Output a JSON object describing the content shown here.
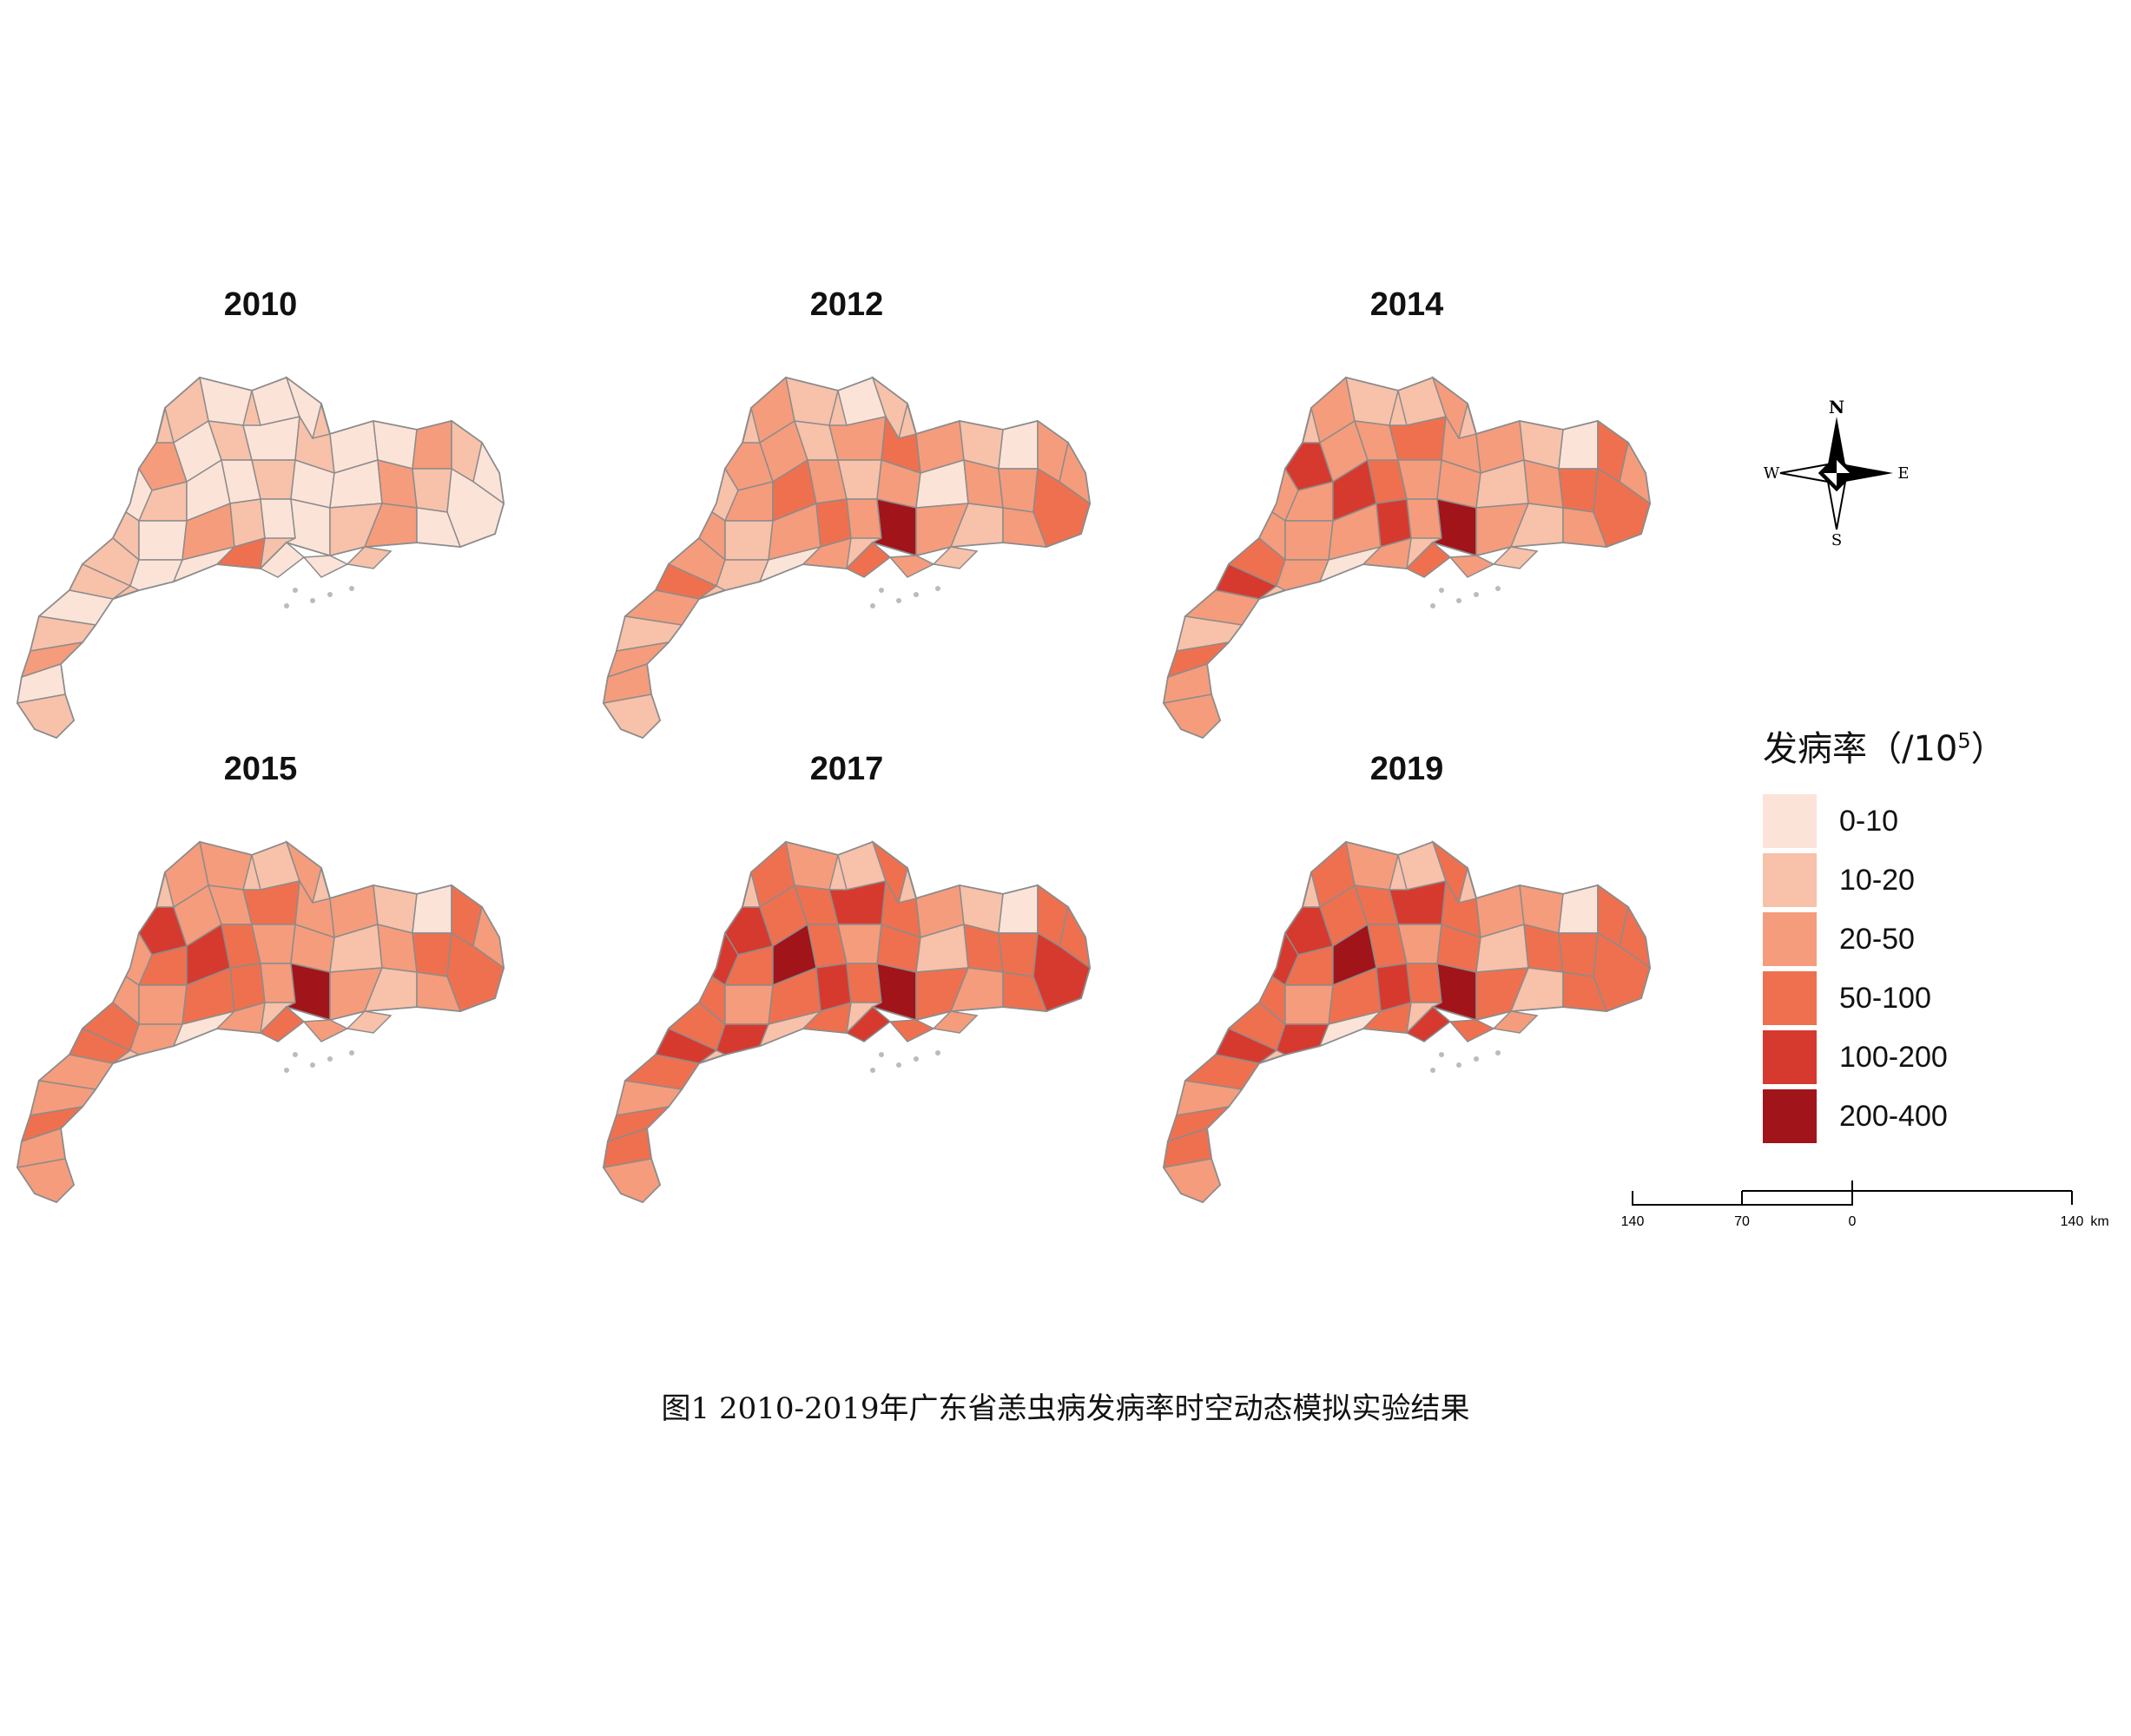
{
  "panels": [
    {
      "year": "2010",
      "classes": [
        0,
        1,
        0,
        0,
        2,
        0,
        1,
        0,
        1,
        0,
        0,
        2,
        1,
        0,
        0,
        1,
        0,
        0,
        1,
        0,
        0,
        2,
        1,
        0,
        1,
        0,
        2,
        1,
        0,
        0,
        1,
        2,
        0,
        1,
        0,
        0,
        3,
        1,
        0,
        1,
        2,
        0,
        1,
        0,
        0,
        1
      ]
    },
    {
      "year": "2012",
      "classes": [
        1,
        2,
        0,
        1,
        2,
        2,
        1,
        2,
        3,
        2,
        1,
        0,
        2,
        2,
        1,
        2,
        3,
        2,
        1,
        2,
        0,
        2,
        2,
        3,
        2,
        1,
        2,
        3,
        2,
        5,
        2,
        1,
        2,
        2,
        1,
        0,
        2,
        3,
        2,
        1,
        2,
        2,
        1,
        3,
        2,
        1
      ]
    },
    {
      "year": "2014",
      "classes": [
        1,
        2,
        1,
        2,
        4,
        2,
        2,
        3,
        2,
        2,
        1,
        0,
        3,
        2,
        2,
        2,
        4,
        3,
        2,
        2,
        1,
        2,
        3,
        3,
        2,
        2,
        2,
        4,
        2,
        5,
        2,
        1,
        2,
        3,
        2,
        0,
        2,
        4,
        2,
        1,
        3,
        2,
        2,
        3,
        2,
        1
      ]
    },
    {
      "year": "2015",
      "classes": [
        2,
        2,
        1,
        2,
        4,
        2,
        2,
        3,
        2,
        2,
        1,
        0,
        3,
        2,
        2,
        3,
        4,
        3,
        2,
        2,
        1,
        2,
        3,
        3,
        2,
        2,
        3,
        3,
        2,
        5,
        2,
        1,
        2,
        3,
        2,
        0,
        2,
        3,
        2,
        2,
        3,
        2,
        2,
        3,
        2,
        1
      ]
    },
    {
      "year": "2017",
      "classes": [
        2,
        3,
        1,
        3,
        4,
        3,
        3,
        4,
        3,
        2,
        1,
        0,
        3,
        3,
        4,
        3,
        5,
        3,
        2,
        3,
        1,
        3,
        3,
        4,
        3,
        2,
        3,
        4,
        3,
        5,
        3,
        2,
        3,
        3,
        4,
        1,
        3,
        4,
        3,
        2,
        3,
        3,
        2,
        4,
        3,
        2
      ]
    },
    {
      "year": "2019",
      "classes": [
        2,
        3,
        1,
        3,
        4,
        3,
        3,
        4,
        3,
        2,
        2,
        0,
        3,
        3,
        4,
        3,
        5,
        3,
        2,
        3,
        1,
        3,
        3,
        3,
        3,
        2,
        3,
        4,
        3,
        5,
        3,
        1,
        3,
        3,
        4,
        0,
        3,
        4,
        3,
        2,
        3,
        3,
        2,
        4,
        3,
        2
      ]
    }
  ],
  "legend": {
    "title": "发病率（/10",
    "title_sup": "5",
    "title_close": "）",
    "items": [
      {
        "label": "0-10",
        "color": "#fce3d8"
      },
      {
        "label": "10-20",
        "color": "#f8c1aa"
      },
      {
        "label": "20-50",
        "color": "#f59c7c"
      },
      {
        "label": "50-100",
        "color": "#ef704f"
      },
      {
        "label": "100-200",
        "color": "#d63a2f"
      },
      {
        "label": "200-400",
        "color": "#a11419"
      }
    ]
  },
  "compass": {
    "n": "N",
    "s": "S",
    "e": "E",
    "w": "W"
  },
  "scalebar": {
    "ticks": [
      "140",
      "70",
      "0",
      "140"
    ],
    "unit": "km"
  },
  "caption": "图1  2010-2019年广东省恙虫病发病率时空动态模拟实验结果"
}
